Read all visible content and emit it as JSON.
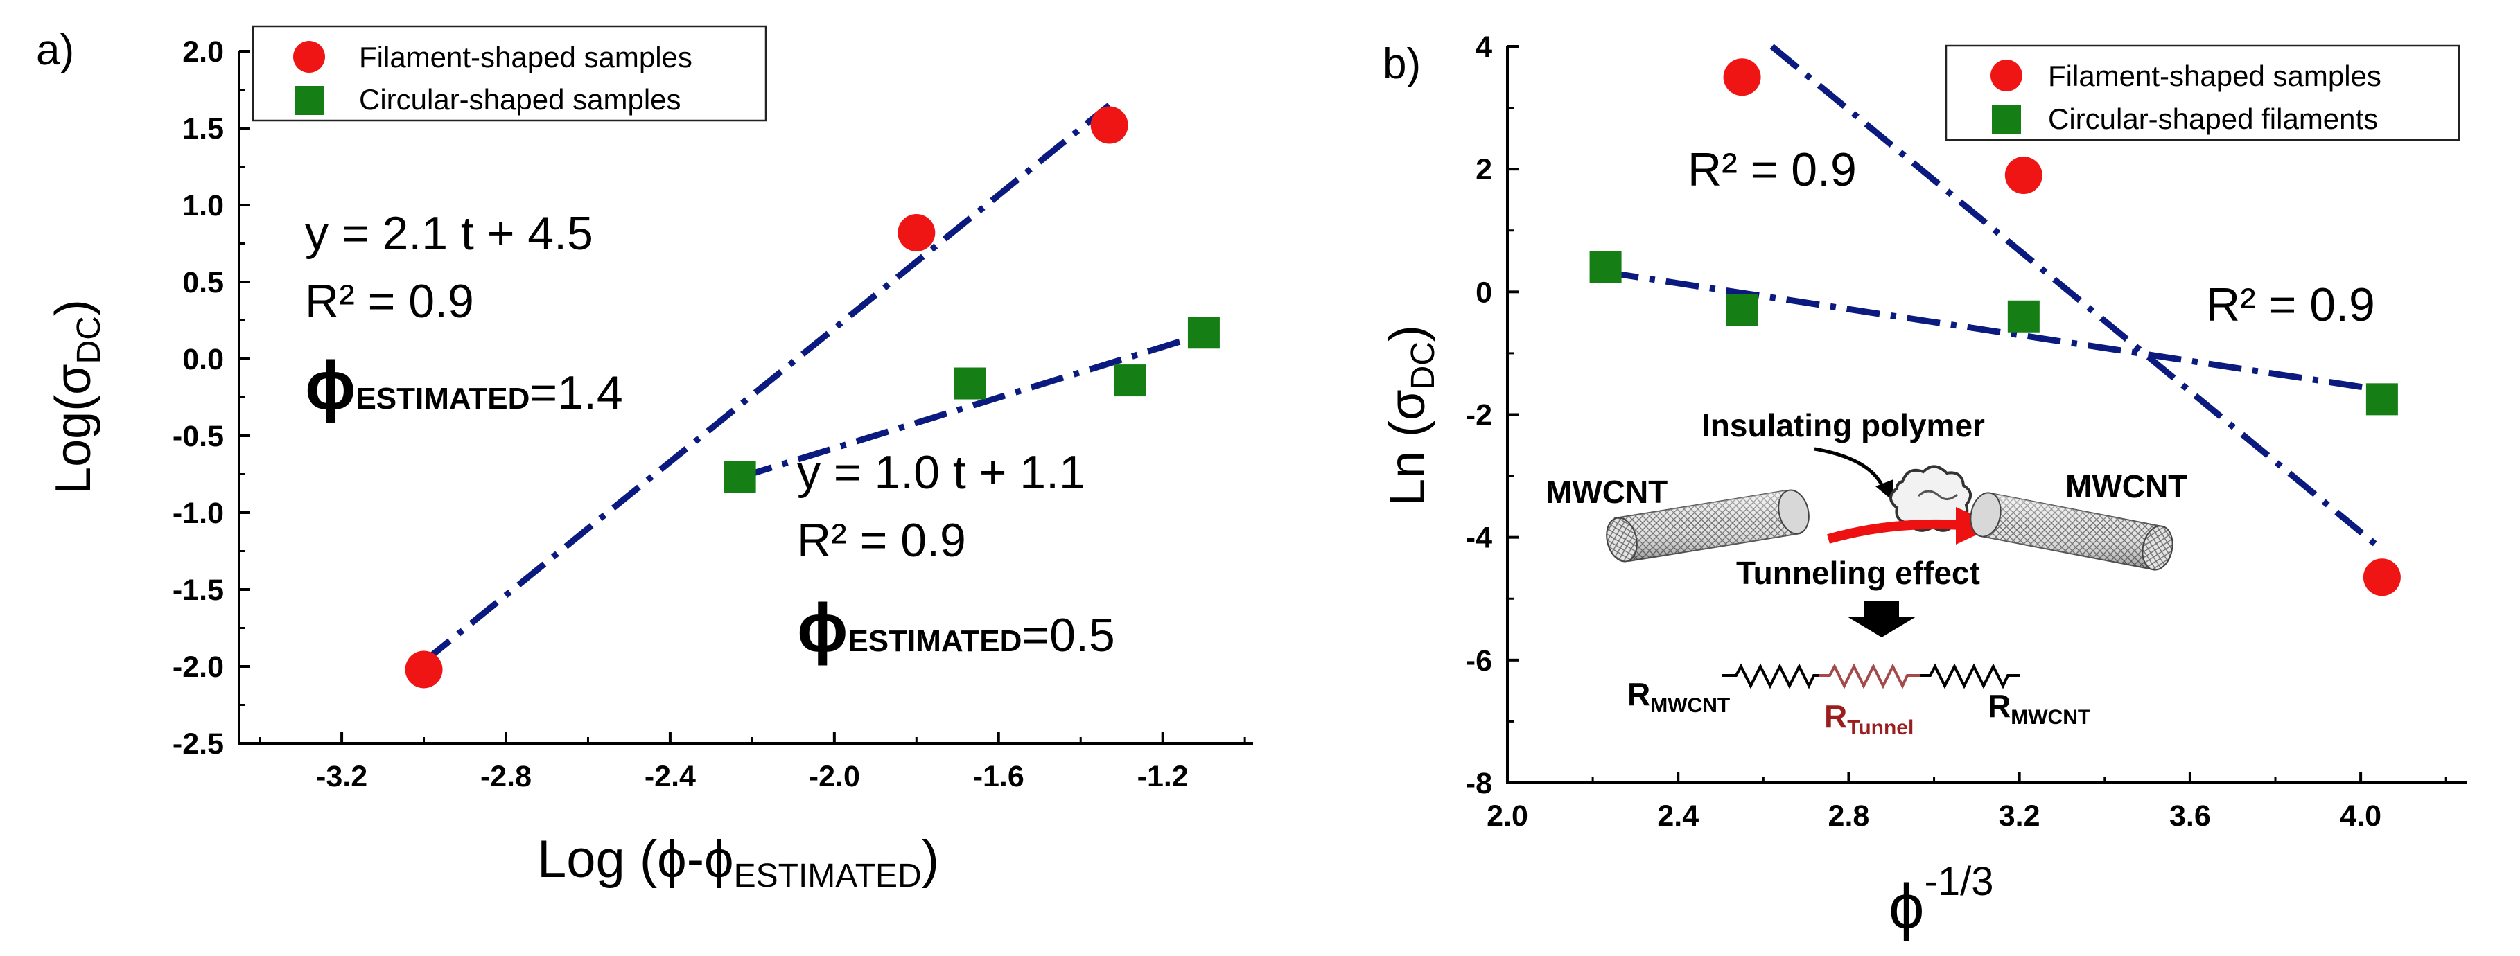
{
  "colors": {
    "filament": "#f01515",
    "circular": "#157e15",
    "fit": "#0b1a7e",
    "tunnel": "#9b1e1e"
  },
  "chart_data": [
    {
      "type": "scatter",
      "panel": "a)",
      "legend_position": "top-center",
      "xlabel_parts": {
        "prefix": "Log (",
        "main": "ϕ-ϕ",
        "sub": "ESTIMATED",
        "suffix": ")"
      },
      "ylabel_parts": {
        "prefix": "Log(σ",
        "sub": "DC",
        "suffix": ")"
      },
      "xlim": [
        -3.45,
        -0.98
      ],
      "ylim": [
        -2.5,
        2.0
      ],
      "xticks": [
        -3.2,
        -2.8,
        -2.4,
        -2.0,
        -1.6,
        -1.2
      ],
      "xtick_labels": [
        "-3.2",
        "-2.8",
        "-2.4",
        "-2.0",
        "-1.6",
        "-1.2"
      ],
      "yticks": [
        -2.5,
        -2.0,
        -1.5,
        -1.0,
        -0.5,
        0.0,
        0.5,
        1.0,
        1.5,
        2.0
      ],
      "ytick_labels": [
        "-2.5",
        "-2.0",
        "-1.5",
        "-1.0",
        "-0.5",
        "0.0",
        "0.5",
        "1.0",
        "1.5",
        "2.0"
      ],
      "series": [
        {
          "name": "Filament-shaped samples",
          "marker": "circle",
          "x": [
            -3.0,
            -1.8,
            -1.33
          ],
          "y": [
            -2.02,
            0.82,
            1.52
          ]
        },
        {
          "name": "Circular-shaped samples",
          "marker": "square",
          "x": [
            -2.23,
            -1.67,
            -1.28,
            -1.1
          ],
          "y": [
            -0.77,
            -0.16,
            -0.14,
            0.17
          ]
        }
      ],
      "fits": [
        {
          "series": "Filament-shaped samples",
          "x": [
            -3.0,
            -1.33
          ],
          "y": [
            -1.97,
            1.65
          ]
        },
        {
          "series": "Circular-shaped samples",
          "x": [
            -2.23,
            -1.1
          ],
          "y": [
            -0.77,
            0.16
          ]
        }
      ],
      "annotations": {
        "fil_eq": "y = 2.1 t + 4.5",
        "fil_r2": "R² = 0.9",
        "fil_phi_sym": "ϕ",
        "fil_phi_sub": "ESTIMATED",
        "fil_phi_val": "=1.4",
        "circ_eq": "y = 1.0 t + 1.1",
        "circ_r2": "R² = 0.9",
        "circ_phi_sym": "ϕ",
        "circ_phi_sub": "ESTIMATED",
        "circ_phi_val": "=0.5"
      }
    },
    {
      "type": "scatter",
      "panel": "b)",
      "legend_position": "top-right",
      "xlabel_parts": {
        "main": "ϕ",
        "sup": "-1/3"
      },
      "ylabel_parts": {
        "prefix": "Ln (σ",
        "sub": "DC",
        "suffix": ")"
      },
      "xlim": [
        2.0,
        4.25
      ],
      "ylim": [
        -8,
        4
      ],
      "xticks": [
        2.0,
        2.4,
        2.8,
        3.2,
        3.6,
        4.0
      ],
      "xtick_labels": [
        "2.0",
        "2.4",
        "2.8",
        "3.2",
        "3.6",
        "4.0"
      ],
      "yticks": [
        -8,
        -6,
        -4,
        -2,
        0,
        2,
        4
      ],
      "ytick_labels": [
        "-8",
        "-6",
        "-4",
        "-2",
        "0",
        "2",
        "4"
      ],
      "series": [
        {
          "name": "Filament-shaped samples",
          "marker": "circle",
          "x": [
            2.55,
            3.21,
            4.05
          ],
          "y": [
            3.5,
            1.9,
            -4.65
          ]
        },
        {
          "name": "Circular-shaped filaments",
          "marker": "square",
          "x": [
            2.23,
            2.55,
            3.21,
            4.05
          ],
          "y": [
            0.4,
            -0.3,
            -0.4,
            -1.75
          ]
        }
      ],
      "fits": [
        {
          "series": "Filament-shaped samples",
          "x": [
            2.62,
            4.05
          ],
          "y": [
            4.0,
            -4.2
          ]
        },
        {
          "series": "Circular-shaped filaments",
          "x": [
            2.23,
            4.05
          ],
          "y": [
            0.32,
            -1.6
          ]
        }
      ],
      "annotations": {
        "r2_left": "R² = 0.9",
        "r2_right": "R² = 0.9"
      },
      "inset": {
        "polymer_label": "Insulating polymer",
        "left_tube": "MWCNT",
        "right_tube": "MWCNT",
        "tunneling": "Tunneling effect",
        "r_left_main": "R",
        "r_left_sub": "MWCNT",
        "r_tunnel_main": "R",
        "r_tunnel_sub": "Tunnel",
        "r_right_main": "R",
        "r_right_sub": "MWCNT"
      }
    }
  ]
}
